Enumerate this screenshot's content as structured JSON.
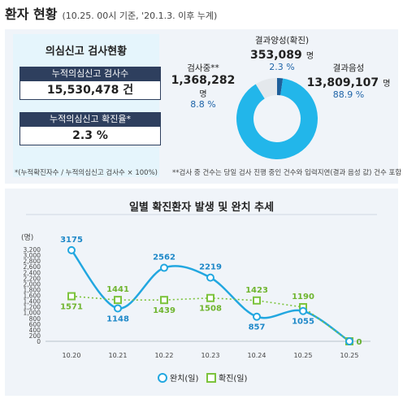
{
  "header": {
    "title": "환자 현황",
    "subtitle": "(10.25. 00시 기준, '20.1.3. 이후 누계)"
  },
  "summary": {
    "box_title": "의심신고 검사현황",
    "tests_label": "누적의심신고 검사수",
    "tests_value": "15,530,478 건",
    "rate_label": "누적의심신고 확진율*",
    "rate_value": "2.3 %",
    "rate_note": "*(누적확진자수 / 누적의심신고 검사수 × 100%)"
  },
  "donut": {
    "positive_label": "결과양성(확진)",
    "positive_value": "353,089",
    "positive_unit": "명",
    "positive_pct": "2.3 %",
    "testing_label": "검사중**",
    "testing_value": "1,368,282",
    "testing_unit": "명",
    "testing_pct": "8.8 %",
    "negative_label": "결과음성",
    "negative_value": "13,809,107",
    "negative_unit": "명",
    "negative_pct": "88.9 %",
    "note": "**검사 중 건수는 당일 검사 진행 중인 건수와 입력지연(결과 음성 값) 건수 포함",
    "shares": {
      "positive": 2.3,
      "testing": 8.8,
      "negative": 88.9
    },
    "colors": {
      "positive": "#1f5f9a",
      "testing": "#e4e8ec",
      "negative": "#22b6ea"
    }
  },
  "chart_data": {
    "type": "line",
    "title": "일별 확진환자 발생 및 완치 추세",
    "ylabel": "(명)",
    "ylim": [
      0,
      3200
    ],
    "yticks": [
      "0",
      "200",
      "400",
      "600",
      "800",
      "1,000",
      "1,200",
      "1,400",
      "1,600",
      "1,800",
      "2,000",
      "2,200",
      "2,400",
      "2,600",
      "2,800",
      "3,000",
      "3,200"
    ],
    "categories": [
      "10.20",
      "10.21",
      "10.22",
      "10.23",
      "10.24",
      "10.25",
      "10.25"
    ],
    "series": [
      {
        "name": "완치(일)",
        "values": [
          3175,
          1148,
          2562,
          2219,
          857,
          1055,
          0
        ],
        "color": "#22a7e0",
        "style": "solid-smooth",
        "marker": "circle"
      },
      {
        "name": "확진(일)",
        "values": [
          1571,
          1441,
          1439,
          1508,
          1423,
          1190,
          0
        ],
        "color": "#7cc33d",
        "style": "dotted",
        "marker": "square"
      }
    ],
    "data_labels": {
      "cure": [
        "3175",
        "1148",
        "2562",
        "2219",
        "857",
        "1055",
        "0"
      ],
      "confirmed": [
        "1571",
        "1441",
        "1439",
        "1508",
        "1423",
        "1190",
        "0"
      ]
    },
    "legend": "bottom",
    "grid": false
  }
}
